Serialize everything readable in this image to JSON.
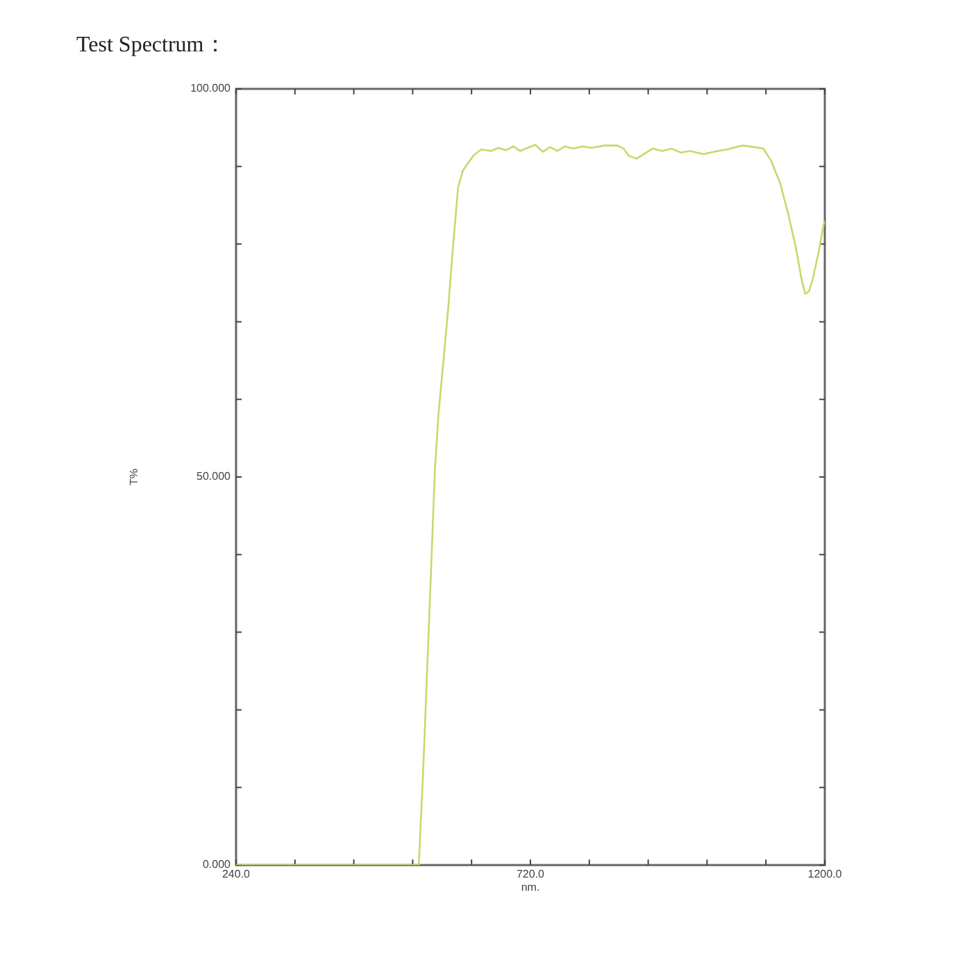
{
  "chart_data": {
    "type": "line",
    "title": "Test Spectrum：",
    "xlabel": "nm.",
    "ylabel": "T%",
    "xlim": [
      240,
      1200
    ],
    "xticks": [
      {
        "value": 240,
        "label": "240.0"
      },
      {
        "value": 336,
        "label": null
      },
      {
        "value": 432,
        "label": null
      },
      {
        "value": 528,
        "label": null
      },
      {
        "value": 624,
        "label": null
      },
      {
        "value": 720,
        "label": "720.0"
      },
      {
        "value": 816,
        "label": null
      },
      {
        "value": 912,
        "label": null
      },
      {
        "value": 1008,
        "label": null
      },
      {
        "value": 1104,
        "label": null
      },
      {
        "value": 1200,
        "label": "1200.0"
      }
    ],
    "ylim": [
      0,
      100
    ],
    "yticks": [
      {
        "value": 0,
        "label": "0.000"
      },
      {
        "value": 10,
        "label": null
      },
      {
        "value": 20,
        "label": null
      },
      {
        "value": 30,
        "label": null
      },
      {
        "value": 40,
        "label": null
      },
      {
        "value": 50,
        "label": "50.000"
      },
      {
        "value": 60,
        "label": null
      },
      {
        "value": 70,
        "label": null
      },
      {
        "value": 80,
        "label": null
      },
      {
        "value": 90,
        "label": null
      },
      {
        "value": 100,
        "label": "100.000"
      }
    ],
    "grid": false,
    "legend": false,
    "marker": "none",
    "series": [
      {
        "color": "#c8d86a",
        "x": [
          240,
          400,
          538,
          545,
          552,
          558,
          564,
          570,
          577,
          586,
          593,
          602,
          610,
          617,
          628,
          640,
          655,
          668,
          680,
          692,
          703,
          715,
          728,
          740,
          752,
          764,
          776,
          790,
          805,
          820,
          840,
          862,
          872,
          880,
          893,
          905,
          919,
          935,
          950,
          965,
          980,
          1002,
          1020,
          1040,
          1066,
          1085,
          1100,
          1112,
          1127,
          1140,
          1153,
          1162,
          1168,
          1174,
          1180,
          1190,
          1198,
          1200
        ],
        "values": [
          0,
          0,
          0,
          12,
          26,
          38,
          50.6,
          58,
          64,
          71.8,
          79,
          87.3,
          89.5,
          90.3,
          91.5,
          92.2,
          92.0,
          92.4,
          92.1,
          92.6,
          92.0,
          92.4,
          92.8,
          91.9,
          92.5,
          92.0,
          92.6,
          92.3,
          92.6,
          92.4,
          92.7,
          92.7,
          92.3,
          91.4,
          91.0,
          91.6,
          92.3,
          92.0,
          92.3,
          91.8,
          92.0,
          91.6,
          91.9,
          92.2,
          92.7,
          92.5,
          92.3,
          90.8,
          87.9,
          84,
          79.5,
          75.5,
          73.6,
          73.9,
          75.4,
          79,
          82.5,
          83
        ]
      }
    ]
  }
}
